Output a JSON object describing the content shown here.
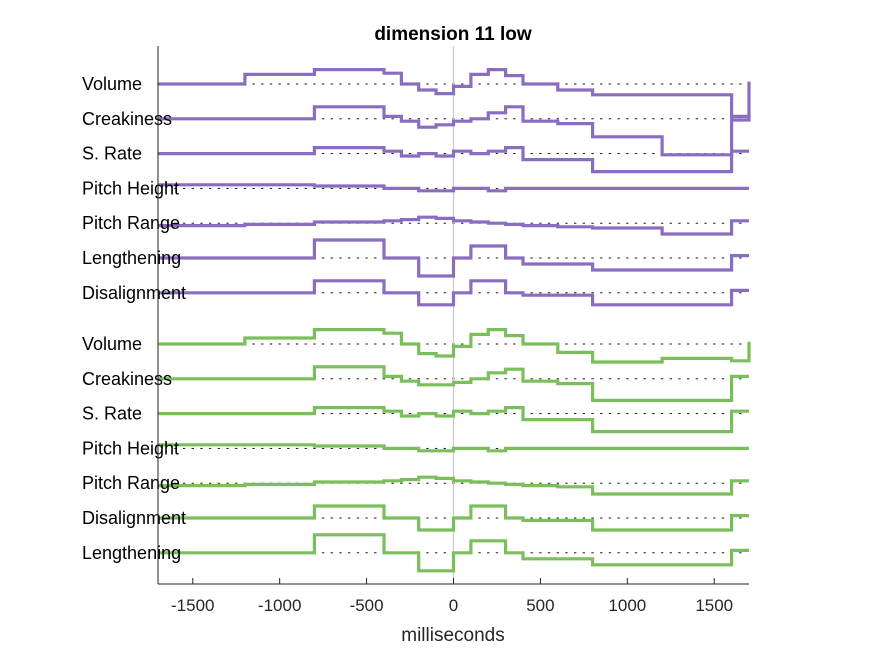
{
  "chart_data": {
    "type": "line",
    "title": "dimension 11 low",
    "xlabel": "milliseconds",
    "ylabel": "",
    "xlim": [
      -1700,
      1700
    ],
    "xticks": [
      -1500,
      -1000,
      -500,
      0,
      500,
      1000,
      1500
    ],
    "xtick_labels": [
      "-1500",
      "-1000",
      "-500",
      "0",
      "500",
      "1000",
      "1500"
    ],
    "grid": false,
    "baseline_markers": "dotted",
    "zero_line": true,
    "bin_edges": [
      -1700,
      -1600,
      -1200,
      -800,
      -400,
      -300,
      -200,
      -100,
      0,
      100,
      200,
      300,
      400,
      600,
      800,
      1200,
      1600,
      1700
    ],
    "groups": [
      {
        "color": "#8a6cc0",
        "rows": [
          {
            "label": "Volume",
            "values": [
              0,
              0,
              0.08,
              0.12,
              0.09,
              0,
              -0.05,
              -0.08,
              -0.02,
              0.08,
              0.12,
              0.07,
              0,
              -0.05,
              -0.09,
              -0.09,
              -0.3,
              0.02
            ]
          },
          {
            "label": "Creakiness",
            "values": [
              0,
              0,
              0,
              0.1,
              0.02,
              -0.02,
              -0.07,
              -0.05,
              -0.02,
              0,
              0.05,
              0.1,
              -0.02,
              -0.04,
              -0.15,
              -0.3,
              0.02,
              0.02
            ]
          },
          {
            "label": "S. Rate",
            "values": [
              0,
              0,
              0,
              0.05,
              0.02,
              -0.02,
              0,
              -0.02,
              0.02,
              0,
              0.02,
              0.05,
              -0.05,
              -0.05,
              -0.15,
              -0.15,
              0.02,
              0.02
            ]
          },
          {
            "label": "Pitch Height",
            "values": [
              0.03,
              0.03,
              0.03,
              0.02,
              0,
              0,
              -0.02,
              -0.02,
              0,
              0,
              -0.02,
              0,
              0,
              0,
              0,
              0,
              0,
              0
            ]
          },
          {
            "label": "Pitch Range",
            "values": [
              -0.02,
              -0.02,
              -0.01,
              0.01,
              0.02,
              0.03,
              0.05,
              0.04,
              0.02,
              0.01,
              0,
              -0.01,
              -0.02,
              -0.03,
              -0.04,
              -0.09,
              0.02,
              0.02
            ]
          },
          {
            "label": "Lengthening",
            "values": [
              0,
              0,
              0,
              0.15,
              0,
              0,
              -0.15,
              -0.15,
              0,
              0.1,
              0.1,
              0,
              -0.05,
              -0.05,
              -0.1,
              -0.1,
              0.02,
              0.02
            ]
          },
          {
            "label": "Disalignment",
            "values": [
              0,
              0,
              0,
              0.1,
              0,
              0,
              -0.1,
              -0.1,
              0,
              0.1,
              0.1,
              0,
              -0.02,
              -0.02,
              -0.1,
              -0.1,
              0.02,
              0.02
            ]
          }
        ]
      },
      {
        "color": "#7bbf5c",
        "rows": [
          {
            "label": "Volume",
            "values": [
              0,
              0,
              0.05,
              0.12,
              0.09,
              0,
              -0.08,
              -0.1,
              -0.02,
              0.08,
              0.12,
              0.07,
              0,
              -0.07,
              -0.15,
              -0.12,
              -0.14,
              0.02
            ]
          },
          {
            "label": "Creakiness",
            "values": [
              0,
              0,
              0,
              0.1,
              0.02,
              -0.02,
              -0.05,
              -0.05,
              -0.03,
              0,
              0.05,
              0.08,
              -0.02,
              -0.04,
              -0.18,
              -0.18,
              0.02,
              0.02
            ]
          },
          {
            "label": "S. Rate",
            "values": [
              0,
              0,
              0,
              0.05,
              0.02,
              -0.02,
              0,
              -0.02,
              0.02,
              0,
              0.02,
              0.05,
              -0.05,
              -0.05,
              -0.15,
              -0.15,
              0.02,
              0.02
            ]
          },
          {
            "label": "Pitch Height",
            "values": [
              0.03,
              0.03,
              0.03,
              0.02,
              0,
              0,
              -0.02,
              -0.02,
              0,
              0,
              -0.02,
              0,
              0,
              0,
              0,
              0,
              0,
              0
            ]
          },
          {
            "label": "Pitch Range",
            "values": [
              -0.02,
              -0.02,
              -0.01,
              0.01,
              0.02,
              0.03,
              0.05,
              0.04,
              0.02,
              0.01,
              0,
              -0.01,
              -0.02,
              -0.03,
              -0.09,
              -0.09,
              0.02,
              0.02
            ]
          },
          {
            "label": "Disalignment",
            "values": [
              0,
              0,
              0,
              0.1,
              0,
              0,
              -0.1,
              -0.1,
              0,
              0.1,
              0.1,
              0,
              -0.02,
              -0.02,
              -0.1,
              -0.1,
              0.02,
              0.02
            ]
          },
          {
            "label": "Lengthening",
            "values": [
              0,
              0,
              0,
              0.15,
              0,
              0,
              -0.15,
              -0.15,
              0,
              0.1,
              0.1,
              0,
              -0.05,
              -0.05,
              -0.1,
              -0.1,
              0.02,
              0.02
            ]
          }
        ]
      }
    ]
  }
}
